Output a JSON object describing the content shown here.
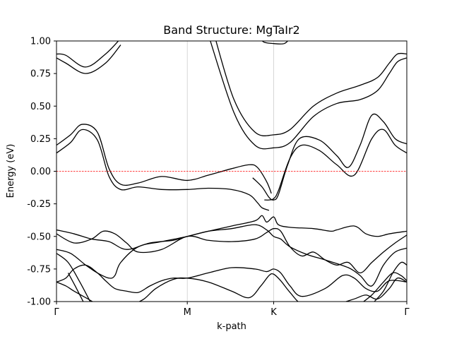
{
  "chart_data": {
    "type": "line",
    "title": "Band Structure: MgTaIr2",
    "xlabel": "k-path",
    "ylabel": "Energy (eV)",
    "xlim": [
      0,
      3
    ],
    "ylim": [
      -1.0,
      1.0
    ],
    "yticks": [
      "-1.00",
      "-0.75",
      "-0.50",
      "-0.25",
      "0.00",
      "0.25",
      "0.50",
      "0.75",
      "1.00"
    ],
    "ytick_values": [
      -1.0,
      -0.75,
      -0.5,
      -0.25,
      0.0,
      0.25,
      0.5,
      0.75,
      1.0
    ],
    "xticks": [
      "Γ",
      "M",
      "K",
      "Γ"
    ],
    "xtick_values": [
      0,
      1.12,
      1.86,
      3
    ],
    "fermi_level": 0.0,
    "colors": {
      "bands": "#000000",
      "fermi": "#ff0000",
      "grid": "#cccccc"
    },
    "series": [
      {
        "x": [
          0,
          0.08,
          0.25,
          0.42,
          0.55
        ],
        "y": [
          0.9,
          0.89,
          0.8,
          0.9,
          1.02
        ]
      },
      {
        "x": [
          0,
          0.08,
          0.25,
          0.42,
          0.55
        ],
        "y": [
          0.87,
          0.83,
          0.75,
          0.83,
          0.97
        ]
      },
      {
        "x": [
          0,
          0.12,
          0.22,
          0.35,
          0.45,
          0.55,
          0.7,
          0.9,
          1.12,
          1.3,
          1.5,
          1.65,
          1.72,
          1.8,
          1.84
        ],
        "y": [
          0.2,
          0.28,
          0.36,
          0.3,
          0.02,
          -0.1,
          -0.09,
          -0.04,
          -0.07,
          -0.03,
          0.02,
          0.05,
          0.03,
          -0.08,
          -0.17
        ]
      },
      {
        "x": [
          0,
          0.12,
          0.22,
          0.35,
          0.45,
          0.55,
          0.7,
          0.9,
          1.12,
          1.3,
          1.5,
          1.65,
          1.72,
          1.76,
          1.82
        ],
        "y": [
          0.14,
          0.22,
          0.32,
          0.24,
          -0.04,
          -0.14,
          -0.12,
          -0.14,
          -0.14,
          -0.13,
          -0.14,
          -0.18,
          -0.24,
          -0.28,
          -0.3
        ]
      },
      {
        "x": [
          1.35,
          1.52,
          1.7,
          1.86,
          2.0,
          2.2,
          2.4,
          2.6,
          2.75,
          2.85,
          2.92,
          3
        ],
        "y": [
          1.05,
          0.55,
          0.3,
          0.28,
          0.32,
          0.5,
          0.6,
          0.66,
          0.72,
          0.83,
          0.9,
          0.9
        ]
      },
      {
        "x": [
          1.3,
          1.52,
          1.7,
          1.86,
          2.0,
          2.2,
          2.4,
          2.6,
          2.75,
          2.85,
          2.92,
          3
        ],
        "y": [
          1.05,
          0.45,
          0.2,
          0.18,
          0.22,
          0.42,
          0.52,
          0.55,
          0.62,
          0.75,
          0.84,
          0.87
        ]
      },
      {
        "x": [
          1.74,
          1.78,
          1.86,
          1.95,
          2.0
        ],
        "y": [
          1.02,
          0.99,
          0.98,
          0.98,
          1.02
        ]
      },
      {
        "x": [
          1.68,
          1.76,
          1.82,
          1.86,
          1.9,
          1.98,
          2.08,
          2.25,
          2.4,
          2.5,
          2.6,
          2.7,
          2.8,
          2.9,
          3
        ],
        "y": [
          -0.05,
          -0.12,
          -0.2,
          -0.22,
          -0.18,
          0.05,
          0.25,
          0.24,
          0.12,
          0.03,
          0.2,
          0.43,
          0.38,
          0.25,
          0.21
        ]
      },
      {
        "x": [
          1.78,
          1.82,
          1.86,
          1.9,
          2.0,
          2.1,
          2.25,
          2.4,
          2.55,
          2.7,
          2.8,
          2.9,
          3
        ],
        "y": [
          -0.22,
          -0.22,
          -0.21,
          -0.15,
          0.1,
          0.2,
          0.16,
          0.05,
          -0.03,
          0.25,
          0.32,
          0.2,
          0.14
        ]
      },
      {
        "x": [
          0,
          0.15,
          0.3,
          0.45,
          0.6,
          0.8,
          1.0,
          1.12,
          1.3,
          1.5,
          1.7,
          1.76,
          1.8,
          1.86,
          1.9,
          2.0,
          2.2,
          2.35,
          2.4,
          2.55,
          2.65,
          2.75,
          2.85,
          3
        ],
        "y": [
          -0.45,
          -0.48,
          -0.52,
          -0.54,
          -0.6,
          -0.55,
          -0.53,
          -0.5,
          -0.46,
          -0.42,
          -0.38,
          -0.34,
          -0.39,
          -0.35,
          -0.41,
          -0.43,
          -0.44,
          -0.46,
          -0.45,
          -0.42,
          -0.48,
          -0.5,
          -0.48,
          -0.46
        ]
      },
      {
        "x": [
          0,
          0.15,
          0.3,
          0.4,
          0.5,
          0.6,
          0.7,
          0.9,
          1.12,
          1.3,
          1.5,
          1.7,
          1.8,
          1.86,
          1.92,
          2.0,
          2.1,
          2.2,
          2.3,
          2.4,
          2.5,
          2.6,
          2.7,
          2.8,
          2.9,
          3
        ],
        "y": [
          -0.48,
          -0.55,
          -0.52,
          -0.46,
          -0.48,
          -0.55,
          -0.62,
          -0.6,
          -0.5,
          -0.53,
          -0.54,
          -0.52,
          -0.47,
          -0.44,
          -0.46,
          -0.58,
          -0.65,
          -0.62,
          -0.68,
          -0.72,
          -0.7,
          -0.78,
          -0.7,
          -0.62,
          -0.55,
          -0.49
        ]
      },
      {
        "x": [
          0,
          0.12,
          0.25,
          0.35,
          0.45,
          0.5,
          0.55,
          0.7,
          0.9,
          1.12,
          1.3,
          1.5,
          1.7,
          1.8,
          1.86,
          1.92,
          2.0,
          2.15,
          2.3,
          2.5,
          2.6,
          2.7,
          2.8,
          2.9,
          3
        ],
        "y": [
          -0.6,
          -0.63,
          -0.72,
          -0.78,
          -0.82,
          -0.8,
          -0.7,
          -0.58,
          -0.54,
          -0.5,
          -0.46,
          -0.44,
          -0.41,
          -0.45,
          -0.5,
          -0.52,
          -0.58,
          -0.64,
          -0.68,
          -0.74,
          -0.8,
          -0.88,
          -0.72,
          -0.62,
          -0.59
        ]
      },
      {
        "x": [
          0,
          0.08,
          0.15,
          0.25,
          0.35,
          0.42,
          0.5,
          0.6,
          0.7,
          0.8,
          0.9,
          1.0,
          1.12,
          1.3,
          1.5,
          1.7,
          1.8,
          1.86,
          1.92,
          2.0,
          2.1,
          2.3,
          2.45,
          2.55,
          2.65,
          2.75,
          2.85,
          3
        ],
        "y": [
          -0.85,
          -0.82,
          -0.75,
          -0.72,
          -0.78,
          -0.84,
          -0.9,
          -0.92,
          -0.93,
          -0.88,
          -0.84,
          -0.82,
          -0.82,
          -0.78,
          -0.74,
          -0.75,
          -0.77,
          -0.75,
          -0.78,
          -0.88,
          -0.96,
          -0.9,
          -0.8,
          -0.82,
          -0.9,
          -0.92,
          -0.84,
          -0.85
        ]
      },
      {
        "x": [
          0,
          0.08,
          0.15,
          0.25,
          0.35,
          0.45,
          0.55,
          0.65,
          0.75,
          0.85,
          1.0,
          1.12,
          1.3,
          1.5,
          1.65,
          1.75,
          1.82,
          1.86,
          1.92,
          2.0,
          2.1,
          2.25,
          2.4,
          2.55,
          2.65,
          2.75,
          2.85,
          2.92,
          3
        ],
        "y": [
          -0.85,
          -0.88,
          -0.92,
          -0.97,
          -1.02,
          -1.05,
          -1.03,
          -1.02,
          -0.98,
          -0.9,
          -0.83,
          -0.82,
          -0.85,
          -0.92,
          -0.97,
          -0.88,
          -0.8,
          -0.79,
          -0.84,
          -0.93,
          -1.02,
          -1.04,
          -1.02,
          -0.98,
          -0.95,
          -0.98,
          -0.9,
          -0.82,
          -0.85
        ]
      },
      {
        "x": [
          0,
          0.1,
          0.2,
          0.3
        ],
        "y": [
          -0.63,
          -0.7,
          -0.85,
          -1.02
        ]
      },
      {
        "x": [
          0.1,
          0.16,
          0.24
        ],
        "y": [
          -0.78,
          -0.88,
          -1.02
        ]
      },
      {
        "x": [
          2.6,
          2.7,
          2.8,
          2.88,
          2.95,
          3
        ],
        "y": [
          -1.02,
          -0.95,
          -0.85,
          -0.78,
          -0.8,
          -0.84
        ]
      },
      {
        "x": [
          2.7,
          2.8,
          2.88,
          2.95,
          3
        ],
        "y": [
          -1.02,
          -0.92,
          -0.78,
          -0.7,
          -0.72
        ]
      }
    ]
  }
}
